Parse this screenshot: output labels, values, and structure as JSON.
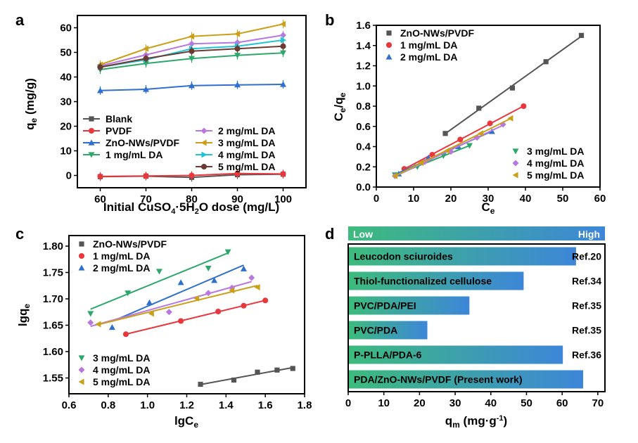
{
  "panels": [
    {
      "id": "a",
      "label": "a"
    },
    {
      "id": "b",
      "label": "b"
    },
    {
      "id": "c",
      "label": "c"
    },
    {
      "id": "d",
      "label": "d"
    }
  ],
  "chart_data": [
    {
      "id": "a",
      "type": "line",
      "xlabel": "Initial CuSO4·5H2O dose (mg/L)",
      "ylabel": "qe (mg/g)",
      "xlim": [
        55,
        105
      ],
      "ylim": [
        -5,
        65
      ],
      "xticks": [
        60,
        70,
        80,
        90,
        100
      ],
      "yticks": [
        0,
        10,
        20,
        30,
        40,
        50,
        60
      ],
      "x": [
        60,
        70,
        80,
        90,
        100
      ],
      "series": [
        {
          "name": "Blank",
          "color": "#555555",
          "marker": "square",
          "values": [
            -0.5,
            -0.3,
            -0.8,
            0.3,
            0.5
          ]
        },
        {
          "name": "PVDF",
          "color": "#e8383d",
          "marker": "circle",
          "values": [
            -0.4,
            -0.2,
            0.0,
            0.8,
            0.6
          ]
        },
        {
          "name": "ZnO-NWs/PVDF",
          "color": "#2f6fd0",
          "marker": "triangle-up",
          "values": [
            34.5,
            35.0,
            36.5,
            36.8,
            37.0
          ]
        },
        {
          "name": "1 mg/mL DA",
          "color": "#2ca86a",
          "marker": "triangle-down",
          "values": [
            43.0,
            45.5,
            47.5,
            48.8,
            49.8
          ]
        },
        {
          "name": "2 mg/mL DA",
          "color": "#b978e0",
          "marker": "diamond",
          "values": [
            44.5,
            49.0,
            53.5,
            54.0,
            57.0
          ]
        },
        {
          "name": "3 mg/mL DA",
          "color": "#c9a017",
          "marker": "triangle-left",
          "values": [
            45.0,
            51.5,
            56.5,
            57.5,
            61.5
          ]
        },
        {
          "name": "4 mg/mL DA",
          "color": "#21c4d4",
          "marker": "triangle-right",
          "values": [
            44.0,
            47.0,
            51.5,
            52.5,
            55.0
          ]
        },
        {
          "name": "5 mg/mL DA",
          "color": "#6b3b32",
          "marker": "circle",
          "values": [
            44.0,
            47.5,
            50.5,
            51.5,
            52.5
          ]
        }
      ]
    },
    {
      "id": "b",
      "type": "scatter",
      "xlabel": "Ce",
      "ylabel": "Ce/qe",
      "xlim": [
        0,
        60
      ],
      "ylim": [
        0,
        1.6
      ],
      "xticks": [
        0,
        10,
        20,
        30,
        40,
        50,
        60
      ],
      "yticks": [
        0.0,
        0.2,
        0.4,
        0.6,
        0.8,
        1.0,
        1.2,
        1.4,
        1.6
      ],
      "legend_top": [
        "ZnO-NWs/PVDF",
        "1 mg/mL DA",
        "2 mg/mL DA"
      ],
      "legend_bottom": [
        "3 mg/mL DA",
        "4 mg/mL DA",
        "5 mg/mL DA"
      ],
      "series": [
        {
          "name": "ZnO-NWs/PVDF",
          "color": "#555555",
          "marker": "square",
          "x": [
            18.5,
            27.5,
            36.5,
            45.5,
            55.0
          ],
          "y": [
            0.53,
            0.78,
            0.98,
            1.24,
            1.5
          ]
        },
        {
          "name": "1 mg/mL DA",
          "color": "#e8383d",
          "marker": "circle",
          "x": [
            7.5,
            15,
            22.5,
            30.5,
            39.5
          ],
          "y": [
            0.18,
            0.32,
            0.47,
            0.63,
            0.8
          ]
        },
        {
          "name": "2 mg/mL DA",
          "color": "#2f6fd0",
          "marker": "triangle-up",
          "x": [
            6,
            14,
            22,
            31
          ],
          "y": [
            0.13,
            0.29,
            0.4,
            0.55
          ]
        },
        {
          "name": "3 mg/mL DA",
          "color": "#2ca86a",
          "marker": "triangle-down",
          "x": [
            5,
            11,
            18,
            25
          ],
          "y": [
            0.12,
            0.2,
            0.31,
            0.41
          ]
        },
        {
          "name": "4 mg/mL DA",
          "color": "#b978e0",
          "marker": "diamond",
          "x": [
            5,
            13,
            20,
            27,
            34
          ],
          "y": [
            0.11,
            0.25,
            0.35,
            0.49,
            0.62
          ]
        },
        {
          "name": "5 mg/mL DA",
          "color": "#c9a017",
          "marker": "triangle-left",
          "x": [
            5,
            12,
            19,
            28,
            36
          ],
          "y": [
            0.11,
            0.24,
            0.36,
            0.53,
            0.68
          ]
        }
      ]
    },
    {
      "id": "c",
      "type": "scatter",
      "xlabel": "lgCe",
      "ylabel": "lgqe",
      "xlim": [
        0.6,
        1.8
      ],
      "ylim": [
        1.52,
        1.82
      ],
      "xticks": [
        0.6,
        0.8,
        1.0,
        1.2,
        1.4,
        1.6,
        1.8
      ],
      "yticks": [
        1.55,
        1.6,
        1.65,
        1.7,
        1.75,
        1.8
      ],
      "legend_top": [
        "ZnO-NWs/PVDF",
        "1 mg/mL DA",
        "2 mg/mL DA"
      ],
      "legend_bottom": [
        "3 mg/mL DA",
        "4 mg/mL DA",
        "5 mg/mL DA"
      ],
      "series": [
        {
          "name": "ZnO-NWs/PVDF",
          "color": "#555555",
          "marker": "square",
          "x": [
            1.27,
            1.44,
            1.56,
            1.66,
            1.74
          ],
          "y": [
            1.538,
            1.546,
            1.561,
            1.565,
            1.568
          ]
        },
        {
          "name": "1 mg/mL DA",
          "color": "#e8383d",
          "marker": "circle",
          "x": [
            0.89,
            1.17,
            1.36,
            1.49,
            1.6
          ],
          "y": [
            1.633,
            1.658,
            1.676,
            1.687,
            1.697
          ]
        },
        {
          "name": "2 mg/mL DA",
          "color": "#2f6fd0",
          "marker": "triangle-up",
          "x": [
            0.82,
            1.01,
            1.17,
            1.34,
            1.49
          ],
          "y": [
            1.646,
            1.693,
            1.731,
            1.735,
            1.757
          ]
        },
        {
          "name": "3 mg/mL DA",
          "color": "#2ca86a",
          "marker": "triangle-down",
          "x": [
            0.71,
            0.9,
            1.06,
            1.31,
            1.41
          ],
          "y": [
            1.672,
            1.711,
            1.752,
            1.758,
            1.789
          ]
        },
        {
          "name": "4 mg/mL DA",
          "color": "#b978e0",
          "marker": "diamond",
          "x": [
            0.71,
            1.11,
            1.31,
            1.43,
            1.53
          ],
          "y": [
            1.655,
            1.675,
            1.711,
            1.721,
            1.74
          ]
        },
        {
          "name": "5 mg/mL DA",
          "color": "#c9a017",
          "marker": "triangle-left",
          "x": [
            0.75,
            1.02,
            1.25,
            1.43,
            1.56
          ],
          "y": [
            1.652,
            1.672,
            1.701,
            1.716,
            1.722
          ]
        }
      ]
    },
    {
      "id": "d",
      "type": "bar",
      "orientation": "horizontal",
      "xlabel": "qm (mg·g-1)",
      "xlim": [
        0,
        72
      ],
      "xticks": [
        0,
        10,
        20,
        30,
        40,
        50,
        60,
        70
      ],
      "gradient_low_label": "Low",
      "gradient_high_label": "High",
      "gradient_colors": [
        "#3dbb7d",
        "#3d86d8"
      ],
      "categories": [
        "Leucodon sciuroides",
        "Thiol-functionalized cellulose",
        "PVC/PDA/PEI",
        "PVC/PDA",
        "P-PLLA/PDA-6",
        "PDA/ZnO-NWs/PVDF (Present work)"
      ],
      "values": [
        63.7,
        49.0,
        33.8,
        22.0,
        60.0,
        65.7
      ],
      "refs": [
        "Ref.20",
        "Ref.34",
        "Ref.35",
        "Ref.35",
        "Ref.36",
        ""
      ]
    }
  ]
}
